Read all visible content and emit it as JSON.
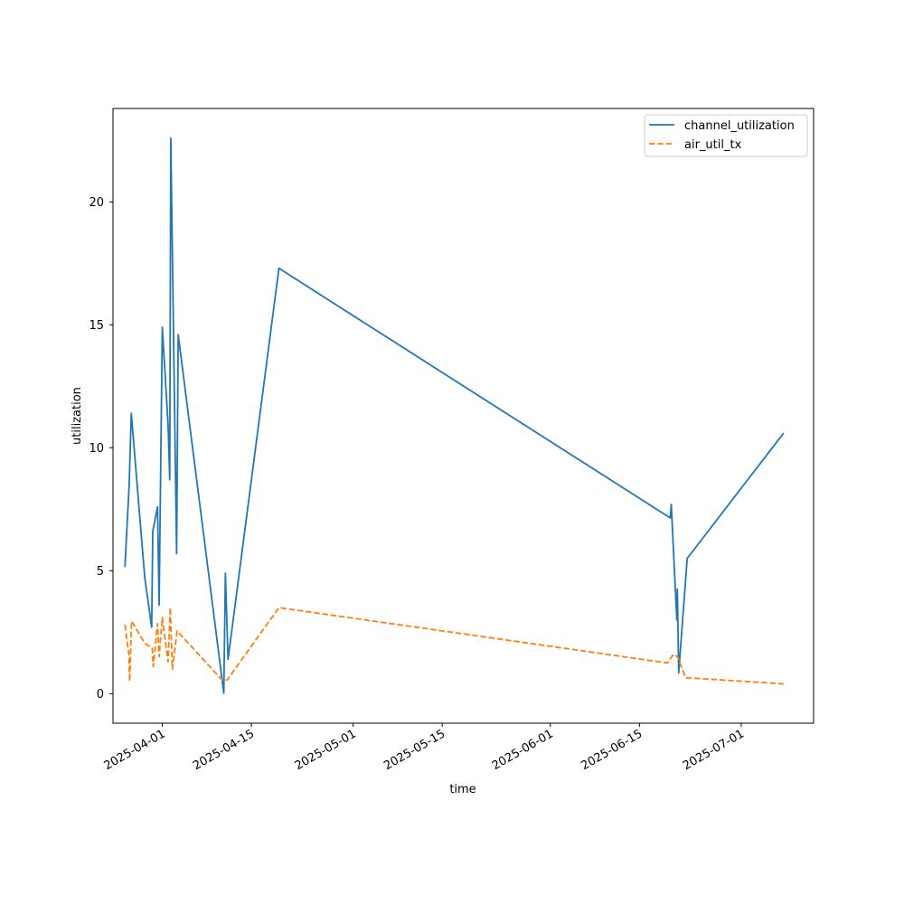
{
  "chart_data": {
    "type": "line",
    "title": "",
    "xlabel": "time",
    "ylabel": "utilization",
    "xlim": [
      "2025-03-24T06:00",
      "2025-07-12T09:00"
    ],
    "ylim": [
      -1.2,
      23.8
    ],
    "x_ticks": [
      "2025-04-01",
      "2025-04-15",
      "2025-05-01",
      "2025-05-15",
      "2025-06-01",
      "2025-06-15",
      "2025-07-01"
    ],
    "y_ticks": [
      0,
      5,
      10,
      15,
      20
    ],
    "grid": false,
    "legend_position": "top-right",
    "series": [
      {
        "name": "channel_utilization",
        "color": "#1f77b4",
        "dash": "solid",
        "points": [
          [
            "2025-03-26T03:00",
            5.15
          ],
          [
            "2025-03-26T19:00",
            8.5
          ],
          [
            "2025-03-27T03:00",
            11.4
          ],
          [
            "2025-03-29T06:00",
            4.7
          ],
          [
            "2025-03-30T08:00",
            2.7
          ],
          [
            "2025-03-30T12:00",
            6.6
          ],
          [
            "2025-03-31T06:00",
            7.6
          ],
          [
            "2025-03-31T12:00",
            3.6
          ],
          [
            "2025-04-01T00:00",
            14.9
          ],
          [
            "2025-04-01T22:00",
            10.9
          ],
          [
            "2025-04-02T04:00",
            8.7
          ],
          [
            "2025-04-02T08:00",
            22.6
          ],
          [
            "2025-04-03T06:00",
            5.7
          ],
          [
            "2025-04-03T12:00",
            14.6
          ],
          [
            "2025-04-10T16:00",
            0.02
          ],
          [
            "2025-04-10T22:00",
            4.9
          ],
          [
            "2025-04-11T08:00",
            1.4
          ],
          [
            "2025-04-19T08:00",
            17.3
          ],
          [
            "2025-06-19T20:00",
            7.15
          ],
          [
            "2025-06-20T00:00",
            7.7
          ],
          [
            "2025-06-20T21:00",
            3.0
          ],
          [
            "2025-06-20T23:00",
            4.25
          ],
          [
            "2025-06-21T04:00",
            0.85
          ],
          [
            "2025-06-22T06:00",
            4.6
          ],
          [
            "2025-06-22T12:00",
            5.5
          ],
          [
            "2025-07-07T16:00",
            10.6
          ]
        ]
      },
      {
        "name": "air_util_tx",
        "color": "#ff7f0e",
        "dash": "dashed",
        "points": [
          [
            "2025-03-26T03:00",
            2.8
          ],
          [
            "2025-03-26T18:00",
            1.6
          ],
          [
            "2025-03-26T21:00",
            0.5
          ],
          [
            "2025-03-27T04:00",
            2.95
          ],
          [
            "2025-03-29T06:00",
            2.05
          ],
          [
            "2025-03-30T10:00",
            1.85
          ],
          [
            "2025-03-30T14:00",
            1.1
          ],
          [
            "2025-03-31T06:00",
            2.85
          ],
          [
            "2025-03-31T12:00",
            1.5
          ],
          [
            "2025-04-01T00:00",
            3.1
          ],
          [
            "2025-04-01T22:00",
            1.3
          ],
          [
            "2025-04-02T06:00",
            3.5
          ],
          [
            "2025-04-02T14:00",
            1.0
          ],
          [
            "2025-04-03T08:00",
            2.55
          ],
          [
            "2025-04-10T10:00",
            0.55
          ],
          [
            "2025-04-11T04:00",
            0.55
          ],
          [
            "2025-04-19T08:00",
            3.5
          ],
          [
            "2025-06-19T10:00",
            1.25
          ],
          [
            "2025-06-20T08:00",
            1.6
          ],
          [
            "2025-06-21T00:00",
            1.5
          ],
          [
            "2025-06-22T06:00",
            0.65
          ],
          [
            "2025-07-07T16:00",
            0.4
          ]
        ]
      }
    ]
  }
}
